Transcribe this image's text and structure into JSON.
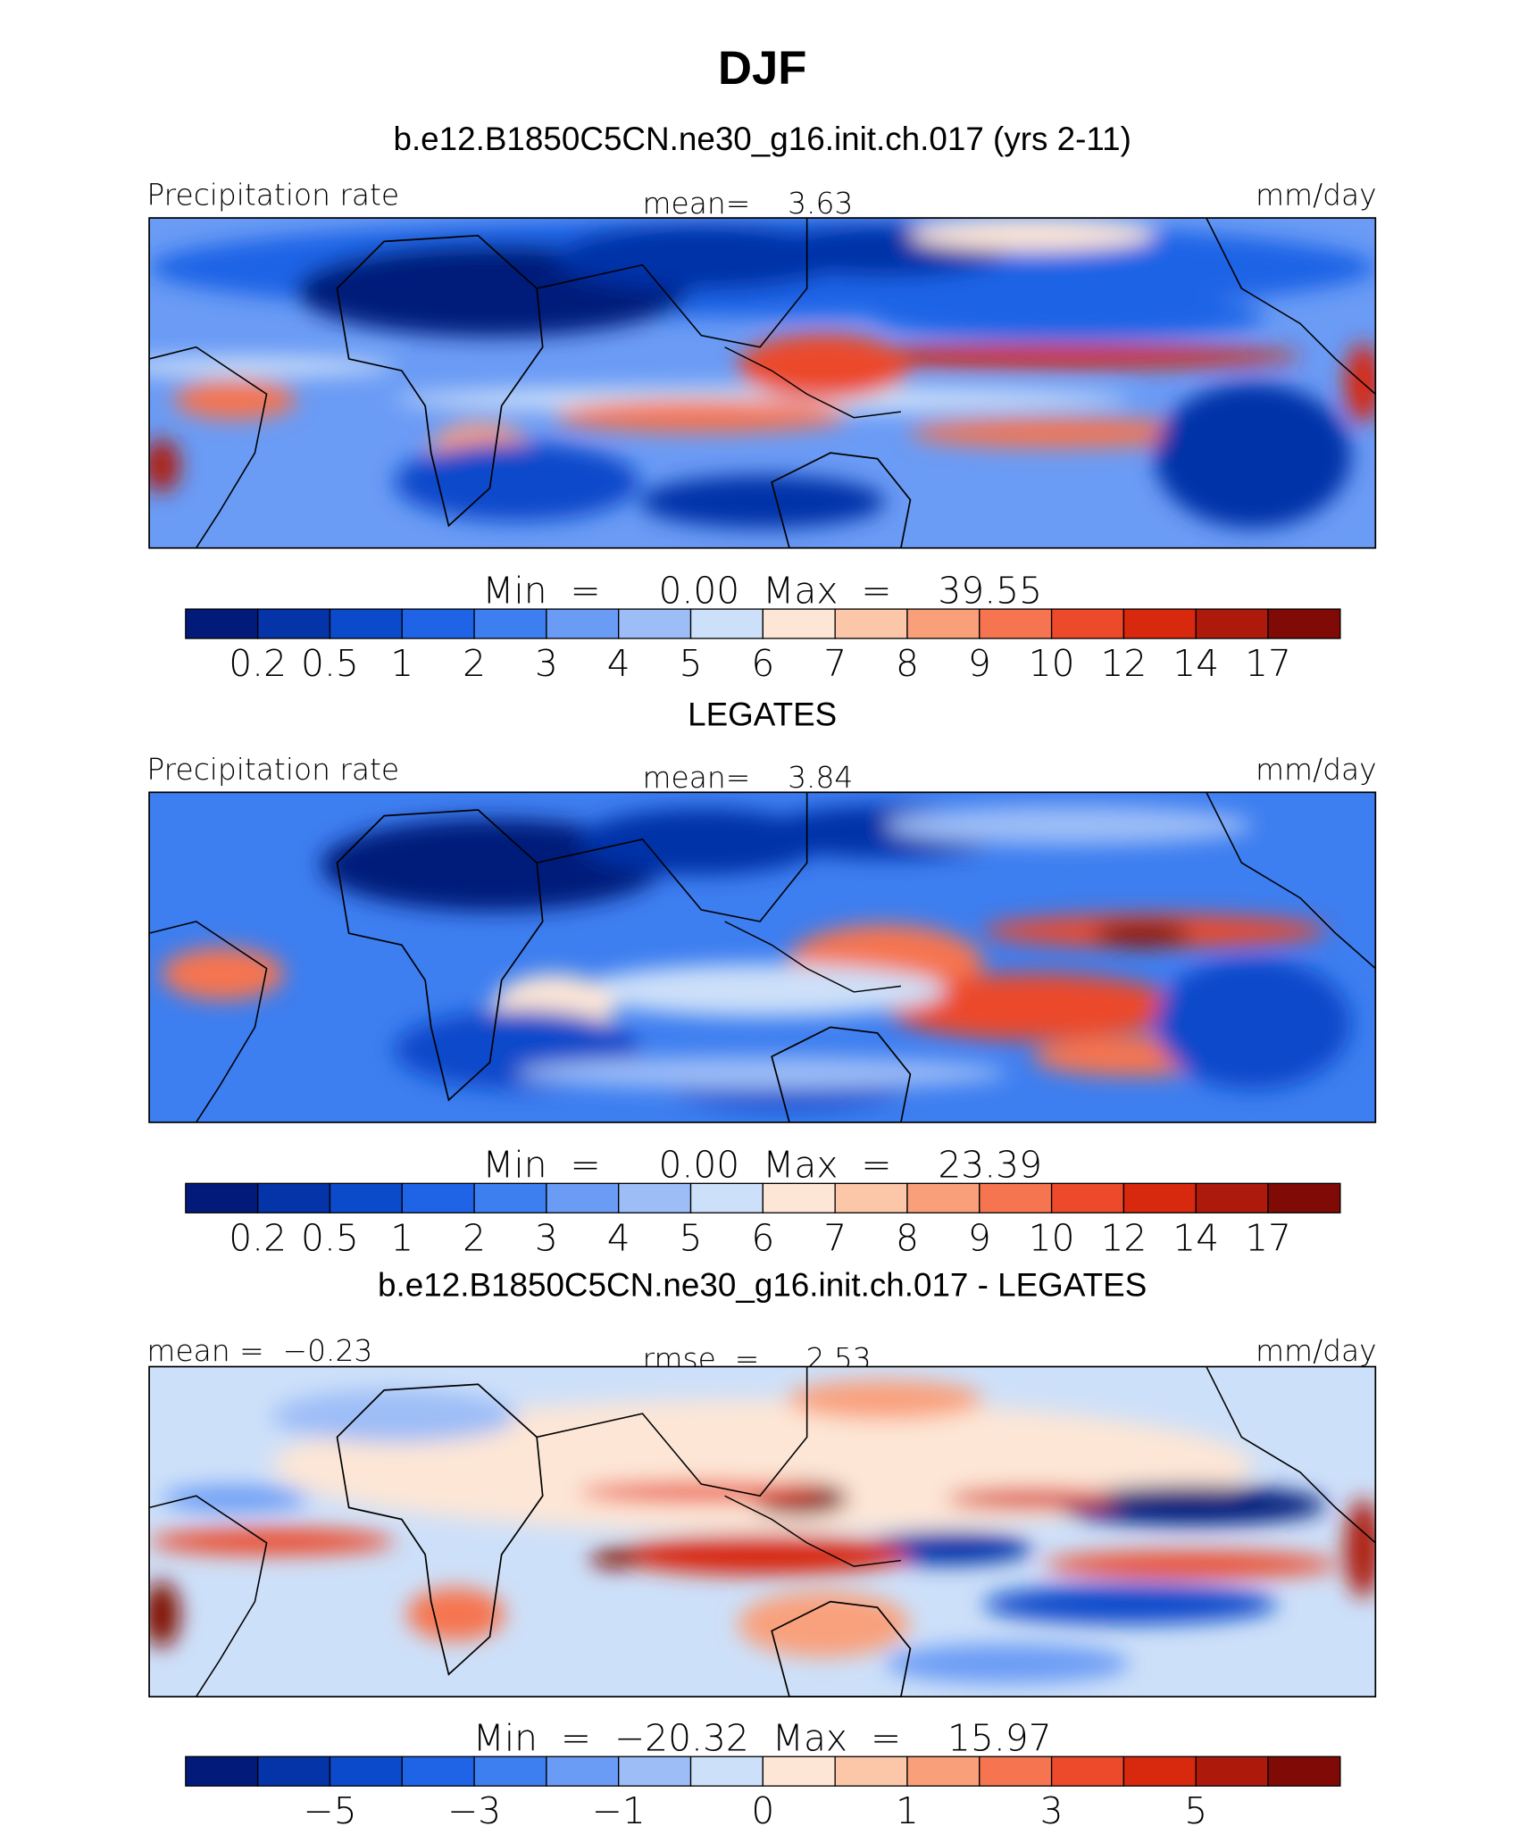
{
  "title": "DJF",
  "colorbar_colors": [
    "#021a7a",
    "#0533a8",
    "#0a4acb",
    "#1f63e6",
    "#3d7ef0",
    "#6a9bf5",
    "#9dbdf7",
    "#cde0f9",
    "#fde6d6",
    "#fcc6a9",
    "#f9a07b",
    "#f67550",
    "#ec4a2a",
    "#d8280e",
    "#ad1a0c",
    "#800a05"
  ],
  "panels": [
    {
      "title": "b.e12.B1850C5CN.ne30_g16.init.ch.017 (yrs 2-11)",
      "left_label": "Precipitation rate",
      "center_label": "mean=    3.63",
      "right_label": "mm/day",
      "min_max": "Min  =     0.00  Max  =    39.55",
      "colorbar_labels": [
        "0.2",
        "0.5",
        "1",
        "2",
        "3",
        "4",
        "5",
        "6",
        "7",
        "8",
        "9",
        "10",
        "12",
        "14",
        "17"
      ]
    },
    {
      "title": "LEGATES",
      "left_label": "Precipitation rate",
      "center_label": "mean=    3.84",
      "right_label": "mm/day",
      "min_max": "Min  =     0.00  Max  =    23.39",
      "colorbar_labels": [
        "0.2",
        "0.5",
        "1",
        "2",
        "3",
        "4",
        "5",
        "6",
        "7",
        "8",
        "9",
        "10",
        "12",
        "14",
        "17"
      ]
    },
    {
      "title": "b.e12.B1850C5CN.ne30_g16.init.ch.017 - LEGATES",
      "left_label": "mean =  −0.23",
      "center_label": "rmse  =     2.53",
      "right_label": "mm/day",
      "min_max": "Min  =  −20.32  Max  =    15.97",
      "colorbar_labels": [
        null,
        "−5",
        null,
        "−3",
        null,
        "−1",
        null,
        "0",
        null,
        "1",
        null,
        "3",
        null,
        "5",
        null
      ]
    }
  ]
}
